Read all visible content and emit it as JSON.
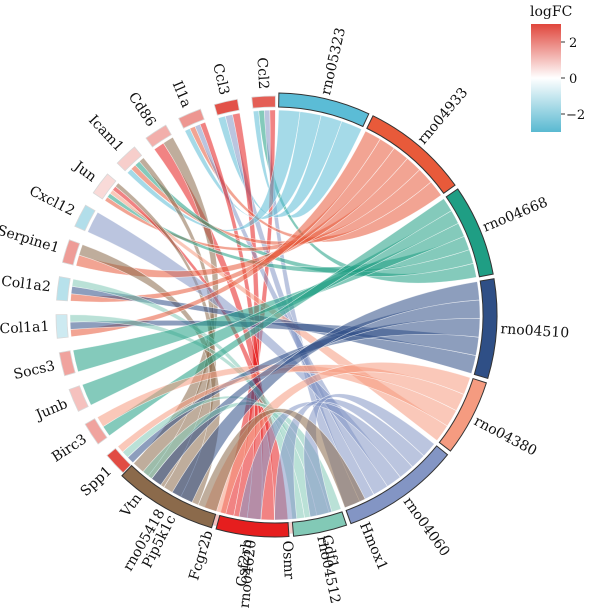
{
  "chart_data": {
    "type": "chord",
    "genes": [
      {
        "name": "Ccl2",
        "logFC": 2.6
      },
      {
        "name": "Ccl3",
        "logFC": 2.8
      },
      {
        "name": "Il1a",
        "logFC": 1.7
      },
      {
        "name": "Cd86",
        "logFC": 1.3
      },
      {
        "name": "Icam1",
        "logFC": 0.8
      },
      {
        "name": "Jun",
        "logFC": 0.6
      },
      {
        "name": "Cxcl12",
        "logFC": -1.4
      },
      {
        "name": "Serpine1",
        "logFC": 1.6
      },
      {
        "name": "Col1a2",
        "logFC": -1.3
      },
      {
        "name": "Col1a1",
        "logFC": -0.9
      },
      {
        "name": "Socs3",
        "logFC": 1.5
      },
      {
        "name": "Junb",
        "logFC": 1.0
      },
      {
        "name": "Birc3",
        "logFC": 1.5
      },
      {
        "name": "Spp1",
        "logFC": 2.9
      },
      {
        "name": "Vtn",
        "logFC": -1.2
      },
      {
        "name": "Pip5k1c",
        "logFC": 1.2
      },
      {
        "name": "Fcgr2b",
        "logFC": 1.0
      },
      {
        "name": "Csf2rb",
        "logFC": 1.2
      },
      {
        "name": "Osmr",
        "logFC": 0.8
      },
      {
        "name": "Gdf1",
        "logFC": -0.8
      },
      {
        "name": "Hmox1",
        "logFC": 2.0
      }
    ],
    "pathways": [
      {
        "name": "rno05323",
        "color": "#5bbcd6"
      },
      {
        "name": "rno04933",
        "color": "#e85a3a"
      },
      {
        "name": "rno04668",
        "color": "#1f9e84"
      },
      {
        "name": "rno04510",
        "color": "#2f4f86"
      },
      {
        "name": "rno04380",
        "color": "#f59b80"
      },
      {
        "name": "rno04060",
        "color": "#8395c4"
      },
      {
        "name": "rno04512",
        "color": "#82c9b6"
      },
      {
        "name": "rno04620",
        "color": "#e61e1e"
      },
      {
        "name": "rno05418",
        "color": "#8b6a4b"
      }
    ],
    "links": [
      [
        "Ccl2",
        "rno05323"
      ],
      [
        "Ccl2",
        "rno04668"
      ],
      [
        "Ccl2",
        "rno04060"
      ],
      [
        "Ccl2",
        "rno04620"
      ],
      [
        "Ccl3",
        "rno05323"
      ],
      [
        "Ccl3",
        "rno04060"
      ],
      [
        "Ccl3",
        "rno04620"
      ],
      [
        "Il1a",
        "rno05323"
      ],
      [
        "Il1a",
        "rno04933"
      ],
      [
        "Il1a",
        "rno04060"
      ],
      [
        "Il1a",
        "rno04620"
      ],
      [
        "Cd86",
        "rno04620"
      ],
      [
        "Cd86",
        "rno05418"
      ],
      [
        "Icam1",
        "rno05323"
      ],
      [
        "Icam1",
        "rno04933"
      ],
      [
        "Icam1",
        "rno04668"
      ],
      [
        "Icam1",
        "rno05418"
      ],
      [
        "Jun",
        "rno04933"
      ],
      [
        "Jun",
        "rno04668"
      ],
      [
        "Jun",
        "rno04380"
      ],
      [
        "Jun",
        "rno04620"
      ],
      [
        "Jun",
        "rno05418"
      ],
      [
        "Cxcl12",
        "rno04060"
      ],
      [
        "Serpine1",
        "rno04933"
      ],
      [
        "Serpine1",
        "rno05418"
      ],
      [
        "Col1a2",
        "rno04933"
      ],
      [
        "Col1a2",
        "rno04510"
      ],
      [
        "Col1a2",
        "rno04512"
      ],
      [
        "Col1a1",
        "rno04933"
      ],
      [
        "Col1a1",
        "rno04510"
      ],
      [
        "Col1a1",
        "rno04512"
      ],
      [
        "Socs3",
        "rno04668"
      ],
      [
        "Junb",
        "rno04668"
      ],
      [
        "Birc3",
        "rno04668"
      ],
      [
        "Birc3",
        "rno04380"
      ],
      [
        "Spp1",
        "rno04510"
      ],
      [
        "Spp1",
        "rno04512"
      ],
      [
        "Spp1",
        "rno04380"
      ],
      [
        "Vtn",
        "rno04510"
      ],
      [
        "Vtn",
        "rno04512"
      ],
      [
        "Pip5k1c",
        "rno04510"
      ],
      [
        "Fcgr2b",
        "rno04380"
      ],
      [
        "Csf2rb",
        "rno04060"
      ],
      [
        "Osmr",
        "rno04060"
      ],
      [
        "Gdf1",
        "rno04060"
      ],
      [
        "Hmox1",
        "rno05418"
      ]
    ],
    "legend": {
      "title": "logFC",
      "ticks": [
        2,
        0,
        -2
      ],
      "tick_labels": [
        "2",
        "0",
        "−2"
      ],
      "range": [
        -3,
        3
      ],
      "colors": {
        "low": "#59b9d1",
        "mid": "#ffffff",
        "high": "#e0463c"
      },
      "position": "top-right"
    }
  }
}
